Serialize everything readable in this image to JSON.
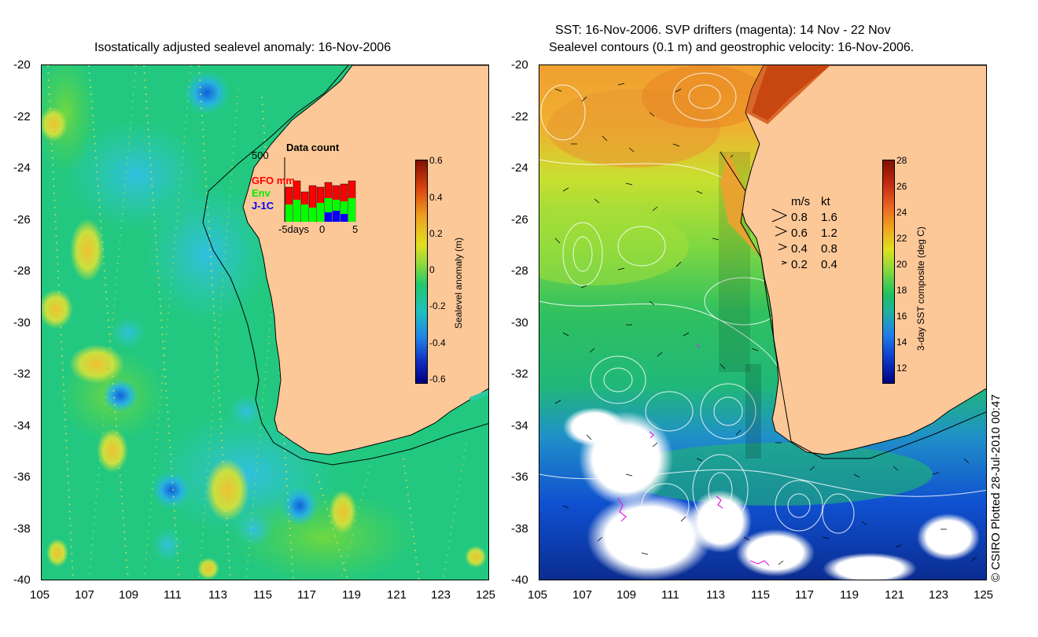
{
  "left_panel": {
    "title": "Isostatically adjusted sealevel anomaly: 16-Nov-2006",
    "y_ticks": [
      "-20",
      "-22",
      "-24",
      "-26",
      "-28",
      "-30",
      "-32",
      "-34",
      "-36",
      "-38",
      "-40"
    ],
    "x_ticks": [
      "105",
      "107",
      "109",
      "111",
      "113",
      "115",
      "117",
      "119",
      "121",
      "123",
      "125"
    ],
    "inset": {
      "top_value": "500",
      "title": "Data count",
      "series": [
        {
          "label": "GFO mm",
          "color": "#ff0000"
        },
        {
          "label": "Env",
          "color": "#00ff00"
        },
        {
          "label": "J-1C",
          "color": "#0000ff"
        }
      ],
      "x_label_left": "-5days",
      "x_label_mid": "0",
      "x_label_right": "5"
    },
    "colorbar": {
      "label": "Sealevel anomaly (m)",
      "ticks": [
        "0.6",
        "0.4",
        "0.2",
        "0",
        "-0.2",
        "-0.4",
        "-0.6"
      ]
    }
  },
  "right_panel": {
    "title_line1": "SST: 16-Nov-2006. SVP drifters (magenta): 14 Nov - 22 Nov",
    "title_line2": "Sealevel contours (0.1 m) and geostrophic velocity: 16-Nov-2006.",
    "y_ticks": [
      "-20",
      "-22",
      "-24",
      "-26",
      "-28",
      "-30",
      "-32",
      "-34",
      "-36",
      "-38",
      "-40"
    ],
    "x_ticks": [
      "105",
      "107",
      "109",
      "111",
      "113",
      "115",
      "117",
      "119",
      "121",
      "123",
      "125"
    ],
    "speed_legend": {
      "header_ms": "m/s",
      "header_kt": "kt",
      "rows": [
        {
          "ms": "0.8",
          "kt": "1.6"
        },
        {
          "ms": "0.6",
          "kt": "1.2"
        },
        {
          "ms": "0.4",
          "kt": "0.8"
        },
        {
          "ms": "0.2",
          "kt": "0.4"
        }
      ]
    },
    "colorbar": {
      "label": "3-day SST composite (deg C)",
      "ticks": [
        "28",
        "26",
        "24",
        "22",
        "20",
        "18",
        "16",
        "14",
        "12"
      ]
    }
  },
  "credit": "© CSIRO Plotted 28-Jul-2010 00:47",
  "colors": {
    "land": "#fdc898",
    "ocean_green": "#1ec87a",
    "ocean_teal": "#2dc9a0"
  }
}
